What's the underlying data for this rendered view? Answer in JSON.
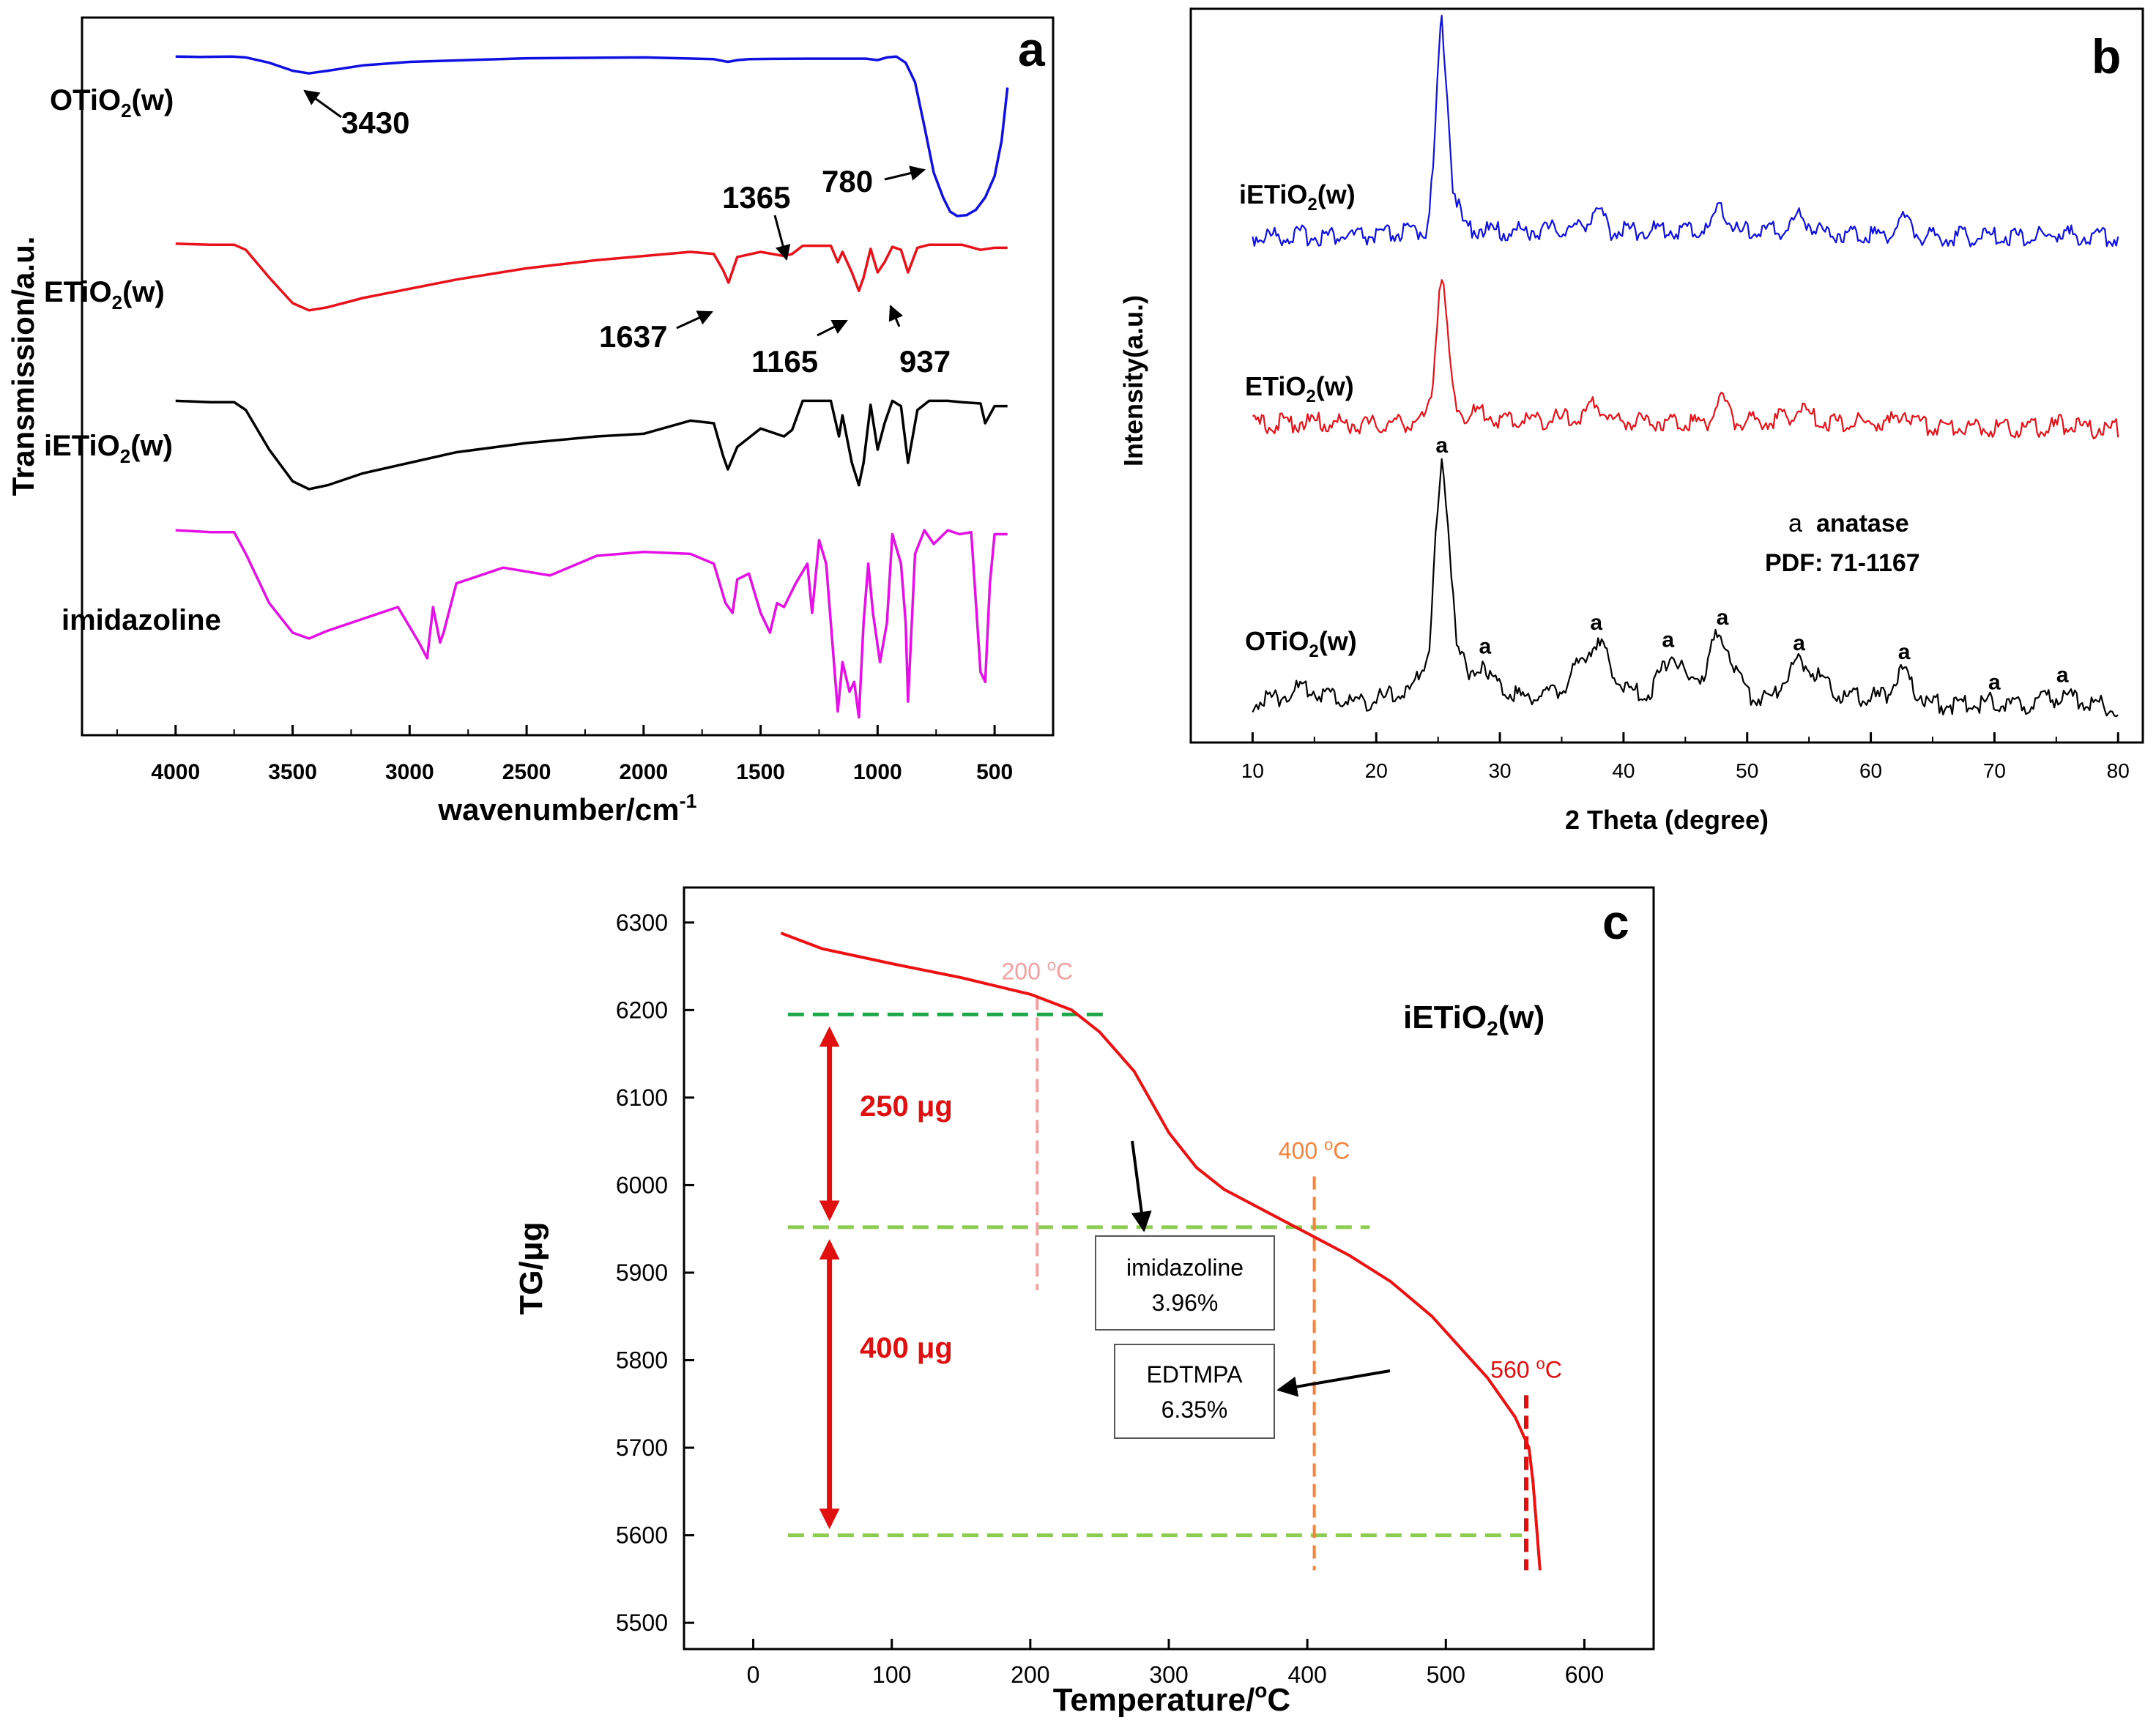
{
  "chart_data": [
    {
      "panel": "a",
      "type": "line",
      "title": "",
      "xlabel": "wavenumber/cm",
      "xlabel_sup": "-1",
      "ylabel": "Transmission/a.u.",
      "xlim": [
        4400,
        250
      ],
      "xticks": [
        4000,
        3500,
        3000,
        2500,
        2000,
        1500,
        1000,
        500
      ],
      "series": [
        {
          "name": "OTiO2(w)",
          "label_main": "OTiO",
          "label_sub": "2",
          "label_tail": "(w)",
          "color": "#1010e0",
          "x": [
            4000,
            3900,
            3760,
            3700,
            3600,
            3500,
            3430,
            3350,
            3200,
            3000,
            2500,
            2000,
            1700,
            1640,
            1600,
            1550,
            1450,
            1300,
            1200,
            1050,
            1000,
            960,
            920,
            880,
            840,
            800,
            780,
            760,
            720,
            690,
            660,
            620,
            580,
            540,
            500,
            470,
            445
          ],
          "y": [
            0.995,
            0.993,
            0.995,
            0.99,
            0.96,
            0.915,
            0.9,
            0.915,
            0.945,
            0.965,
            0.985,
            0.99,
            0.98,
            0.965,
            0.975,
            0.98,
            0.982,
            0.983,
            0.983,
            0.983,
            0.975,
            0.99,
            0.995,
            0.96,
            0.85,
            0.6,
            0.47,
            0.34,
            0.2,
            0.12,
            0.095,
            0.1,
            0.13,
            0.2,
            0.32,
            0.52,
            0.82
          ]
        },
        {
          "name": "ETiO2(w)",
          "label_main": "ETiO",
          "label_sub": "2",
          "label_tail": "(w)",
          "color": "#e8121a",
          "x": [
            4000,
            3850,
            3750,
            3700,
            3600,
            3500,
            3430,
            3350,
            3200,
            3000,
            2800,
            2500,
            2200,
            2000,
            1800,
            1700,
            1660,
            1637,
            1600,
            1500,
            1400,
            1365,
            1320,
            1250,
            1200,
            1170,
            1150,
            1110,
            1080,
            1060,
            1030,
            1000,
            970,
            937,
            900,
            870,
            830,
            780,
            700,
            640,
            560,
            500,
            445
          ],
          "y": [
            0.98,
            0.97,
            0.97,
            0.92,
            0.65,
            0.4,
            0.33,
            0.36,
            0.45,
            0.54,
            0.63,
            0.74,
            0.82,
            0.86,
            0.9,
            0.88,
            0.72,
            0.6,
            0.85,
            0.9,
            0.86,
            0.88,
            0.96,
            0.96,
            0.96,
            0.8,
            0.9,
            0.7,
            0.52,
            0.65,
            0.93,
            0.7,
            0.8,
            0.95,
            0.92,
            0.7,
            0.94,
            0.97,
            0.97,
            0.97,
            0.92,
            0.94,
            0.94
          ]
        },
        {
          "name": "iETiO2(w)",
          "label_main": "iETiO",
          "label_sub": "2",
          "label_tail": "(w)",
          "color": "#000000",
          "x": [
            4000,
            3850,
            3750,
            3700,
            3600,
            3500,
            3430,
            3350,
            3200,
            3000,
            2800,
            2500,
            2200,
            2000,
            1800,
            1700,
            1660,
            1640,
            1600,
            1500,
            1400,
            1365,
            1320,
            1250,
            1200,
            1165,
            1150,
            1110,
            1080,
            1060,
            1030,
            1000,
            970,
            937,
            900,
            870,
            830,
            780,
            700,
            640,
            560,
            540,
            500,
            445
          ],
          "y": [
            0.97,
            0.96,
            0.96,
            0.9,
            0.6,
            0.36,
            0.3,
            0.33,
            0.42,
            0.5,
            0.58,
            0.65,
            0.7,
            0.72,
            0.82,
            0.8,
            0.55,
            0.45,
            0.62,
            0.76,
            0.7,
            0.75,
            0.97,
            0.97,
            0.97,
            0.7,
            0.86,
            0.5,
            0.33,
            0.5,
            0.94,
            0.6,
            0.8,
            0.97,
            0.93,
            0.5,
            0.9,
            0.97,
            0.97,
            0.96,
            0.95,
            0.8,
            0.93,
            0.93
          ]
        },
        {
          "name": "imidazoline",
          "label_main": "imidazoline",
          "label_sub": "",
          "label_tail": "",
          "color": "#e510e5",
          "x": [
            4000,
            3850,
            3750,
            3700,
            3600,
            3500,
            3430,
            3350,
            3200,
            3050,
            2960,
            2925,
            2900,
            2870,
            2855,
            2800,
            2600,
            2400,
            2200,
            2000,
            1800,
            1700,
            1650,
            1620,
            1600,
            1550,
            1500,
            1460,
            1430,
            1400,
            1350,
            1300,
            1280,
            1250,
            1220,
            1170,
            1150,
            1120,
            1100,
            1080,
            1060,
            1040,
            1020,
            990,
            960,
            937,
            900,
            880,
            870,
            840,
            800,
            760,
            700,
            650,
            600,
            560,
            540,
            520,
            500,
            470,
            445
          ],
          "y": [
            0.97,
            0.96,
            0.96,
            0.85,
            0.6,
            0.45,
            0.42,
            0.46,
            0.52,
            0.58,
            0.4,
            0.32,
            0.58,
            0.4,
            0.45,
            0.7,
            0.78,
            0.74,
            0.84,
            0.86,
            0.85,
            0.8,
            0.6,
            0.55,
            0.72,
            0.75,
            0.55,
            0.45,
            0.6,
            0.58,
            0.7,
            0.8,
            0.55,
            0.92,
            0.8,
            0.05,
            0.3,
            0.15,
            0.2,
            0.02,
            0.5,
            0.8,
            0.55,
            0.3,
            0.5,
            0.95,
            0.8,
            0.5,
            0.1,
            0.85,
            0.97,
            0.9,
            0.97,
            0.95,
            0.96,
            0.25,
            0.2,
            0.7,
            0.95,
            0.95,
            0.95
          ]
        }
      ],
      "annotations": [
        "3430",
        "780",
        "1365",
        "1637",
        "1165",
        "937"
      ],
      "panel_label": "a"
    },
    {
      "panel": "b",
      "type": "line",
      "title": "",
      "xlabel": "2 Theta (degree)",
      "ylabel": "Intensity(a.u.)",
      "xlim": [
        5,
        82
      ],
      "xticks": [
        10,
        20,
        30,
        40,
        50,
        60,
        70,
        80
      ],
      "series": [
        {
          "name": "iETiO2(w)",
          "label_main": "iETiO",
          "label_sub": "2",
          "label_tail": "(w)",
          "color": "#1010e0",
          "x": [
            10,
            14,
            20,
            24,
            24.6,
            25.1,
            25.3,
            25.6,
            26.2,
            27,
            30,
            36.5,
            37.8,
            39,
            46.8,
            47.9,
            49,
            53,
            54.2,
            56,
            61.5,
            62.6,
            64,
            74.5,
            75.5,
            76.5,
            80
          ],
          "y": [
            0,
            0.005,
            0,
            0.03,
            0.28,
            0.9,
            1.0,
            0.8,
            0.25,
            0.05,
            0.02,
            0.04,
            0.13,
            0.03,
            0.03,
            0.16,
            0.02,
            0.03,
            0.1,
            0.02,
            0.01,
            0.09,
            0.0,
            0.0,
            0.02,
            0.0,
            0.0
          ]
        },
        {
          "name": "ETiO2(w)",
          "label_main": "ETiO",
          "label_sub": "2",
          "label_tail": "(w)",
          "color": "#e8121a",
          "x": [
            10,
            14,
            20,
            24,
            24.6,
            25.1,
            25.3,
            25.6,
            26.2,
            27,
            28.6,
            30,
            36.5,
            37.8,
            39,
            46.8,
            47.9,
            49,
            53,
            54.2,
            56,
            61.5,
            62.6,
            64,
            74.5,
            75.5,
            76.5,
            80
          ],
          "y": [
            0.02,
            0.04,
            0.02,
            0.05,
            0.32,
            0.86,
            0.95,
            0.72,
            0.22,
            0.08,
            0.1,
            0.05,
            0.06,
            0.16,
            0.05,
            0.04,
            0.2,
            0.04,
            0.06,
            0.12,
            0.04,
            0.03,
            0.11,
            0.02,
            0.0,
            0.03,
            0.0,
            0.0
          ]
        },
        {
          "name": "OTiO2(w)",
          "label_main": "OTiO",
          "label_sub": "2",
          "label_tail": "(w)",
          "color": "#000000",
          "x": [
            10,
            12,
            14,
            16,
            18,
            20,
            23,
            24.3,
            24.8,
            25.3,
            25.8,
            26.5,
            27.5,
            28.6,
            29.8,
            32,
            35,
            36.8,
            37.8,
            38.8,
            40,
            42,
            43.3,
            43.9,
            44.4,
            45.3,
            46.5,
            47.3,
            48,
            48.8,
            50,
            52,
            53.3,
            54,
            55,
            56.5,
            58,
            61,
            62.3,
            62.7,
            63.3,
            64.5,
            66,
            68.5,
            69.8,
            71,
            73,
            75,
            75.6,
            76.5,
            78,
            80
          ],
          "y": [
            0.03,
            0.05,
            0.09,
            0.06,
            0.03,
            0.04,
            0.08,
            0.25,
            0.7,
            1.0,
            0.75,
            0.3,
            0.12,
            0.2,
            0.1,
            0.05,
            0.08,
            0.22,
            0.28,
            0.2,
            0.08,
            0.06,
            0.18,
            0.24,
            0.18,
            0.12,
            0.14,
            0.28,
            0.3,
            0.2,
            0.06,
            0.05,
            0.15,
            0.2,
            0.18,
            0.1,
            0.05,
            0.05,
            0.13,
            0.16,
            0.1,
            0.03,
            0.02,
            0.02,
            0.04,
            0.02,
            0.02,
            0.05,
            0.07,
            0.04,
            0.02,
            0.01
          ]
        }
      ],
      "peak_letters": [
        25.3,
        28.8,
        37.8,
        43.6,
        48.0,
        54.2,
        62.7,
        70.0,
        75.5
      ],
      "peak_letter": "a",
      "legend_letter": "a",
      "legend_text": "anatase",
      "pdf_text": "PDF: 71-1167",
      "panel_label": "b"
    },
    {
      "panel": "c",
      "type": "line",
      "title": "",
      "xlabel": "Temperature/",
      "xlabel_sup": "o",
      "xlabel_tail": "C",
      "ylabel": "TG/μg",
      "xlim": [
        -50,
        650
      ],
      "ylim": [
        5470,
        6340
      ],
      "xticks": [
        0,
        100,
        200,
        300,
        400,
        500,
        600
      ],
      "yticks": [
        5500,
        5600,
        5700,
        5800,
        5900,
        6000,
        6100,
        6200,
        6300
      ],
      "series": [
        {
          "name": "iETiO2(w)",
          "color": "#ee1111",
          "x": [
            20,
            50,
            100,
            150,
            200,
            230,
            250,
            275,
            300,
            320,
            340,
            370,
            400,
            430,
            460,
            490,
            510,
            530,
            550,
            560,
            563,
            566,
            568
          ],
          "y": [
            6288,
            6270,
            6253,
            6237,
            6218,
            6200,
            6175,
            6130,
            6060,
            6020,
            5995,
            5970,
            5945,
            5920,
            5890,
            5850,
            5815,
            5780,
            5735,
            5700,
            5660,
            5600,
            5560
          ]
        }
      ],
      "series_label_main": "iETiO",
      "series_label_sub": "2",
      "series_label_tail": "(w)",
      "markers": [
        {
          "label_main": "200 ",
          "label_sup": "o",
          "label_tail": "C",
          "x": 205,
          "color": "#f4a0a0"
        },
        {
          "label_main": "400 ",
          "label_sup": "o",
          "label_tail": "C",
          "x": 405,
          "color": "#f6823c"
        },
        {
          "label_main": "560 ",
          "label_sup": "o",
          "label_tail": "C",
          "x": 558,
          "color": "#e01010"
        }
      ],
      "guide_levels": [
        6195,
        5952,
        5600
      ],
      "mass_labels": [
        "250 μg",
        "400 μg"
      ],
      "boxes": [
        {
          "line1": "imidazoline",
          "line2": "3.96%"
        },
        {
          "line1": "EDTMPA",
          "line2": "6.35%"
        }
      ],
      "panel_label": "c"
    }
  ]
}
